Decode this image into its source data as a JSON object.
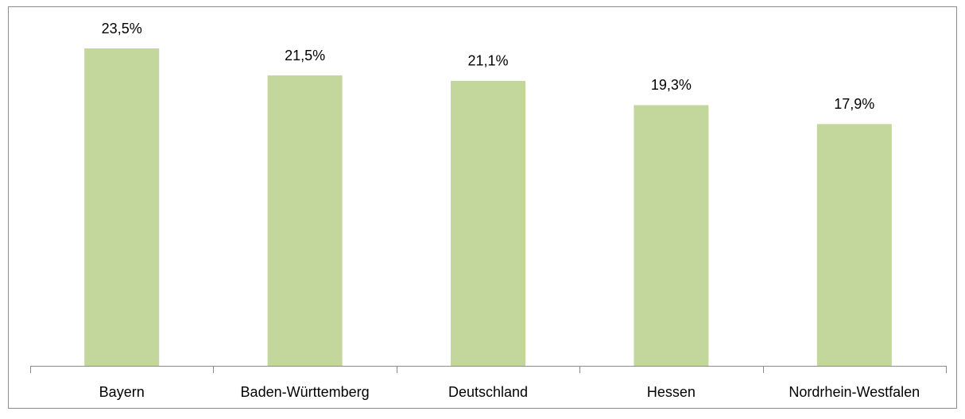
{
  "chart_data": {
    "type": "bar",
    "categories": [
      "Bayern",
      "Baden-Württemberg",
      "Deutschland",
      "Hessen",
      "Nordrhein-Westfalen"
    ],
    "values": [
      23.5,
      21.5,
      21.1,
      19.3,
      17.9
    ],
    "value_labels": [
      "23,5%",
      "21,5%",
      "21,1%",
      "19,3%",
      "17,9%"
    ],
    "color": "#c3d69b"
  }
}
